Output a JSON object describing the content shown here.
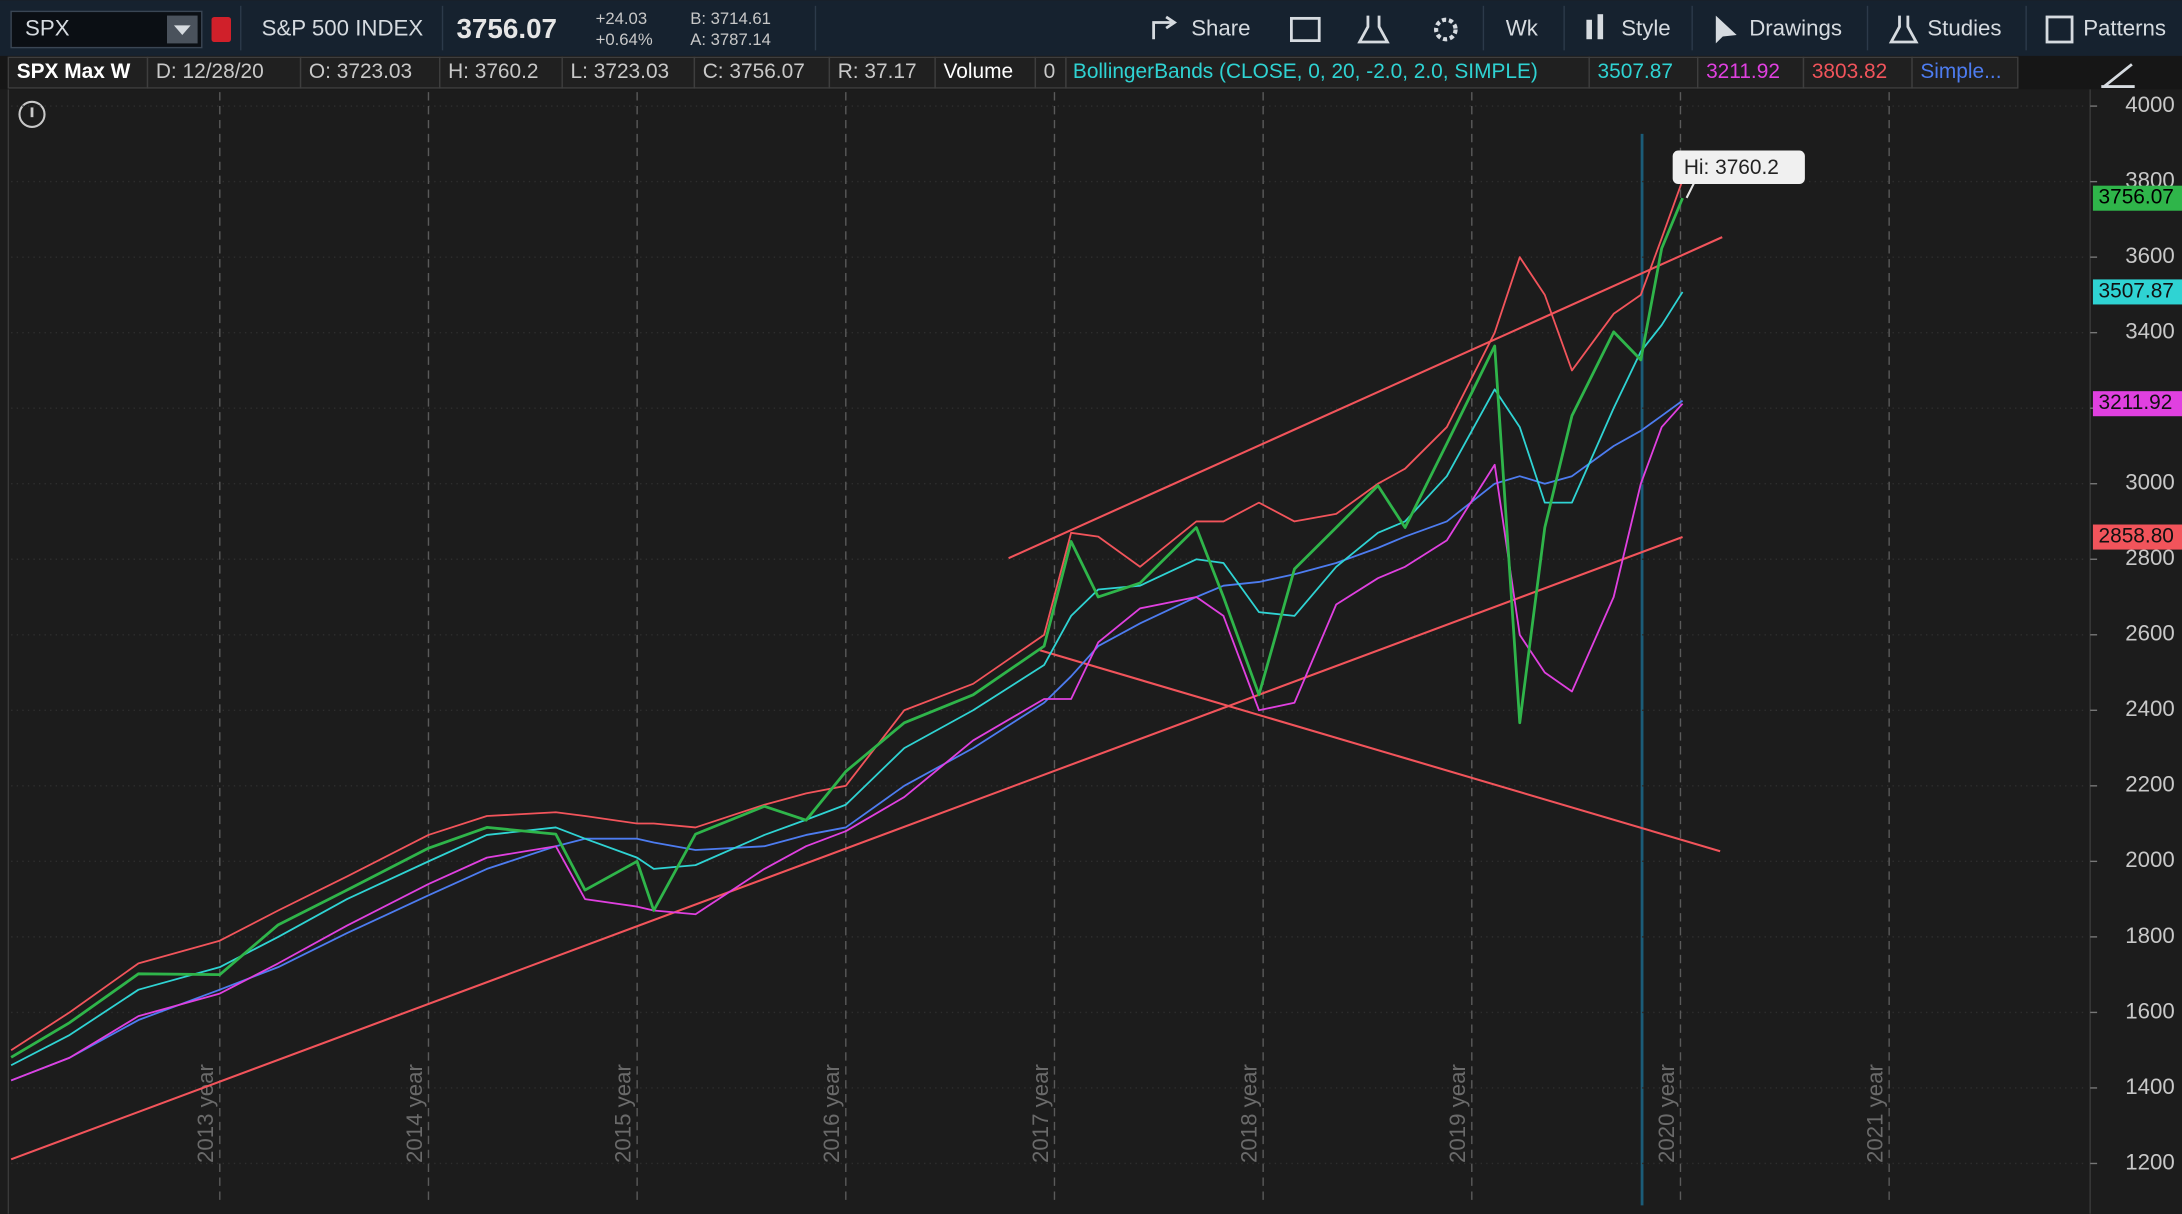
{
  "header": {
    "symbol": "SPX",
    "description": "S&P 500 INDEX",
    "last": "3756.07",
    "change": "+24.03",
    "change_pct": "+0.64%",
    "bid": "B: 3714.61",
    "ask": "A: 3787.14",
    "tools": [
      "Share",
      "Wk",
      "Style",
      "Drawings",
      "Studies",
      "Patterns"
    ]
  },
  "info_bar": {
    "title": "SPX Max W",
    "date": "D: 12/28/20",
    "open": "O: 3723.03",
    "high": "H: 3760.2",
    "low": "L: 3723.03",
    "close": "C: 3756.07",
    "range": "R: 37.17",
    "volume_label": "Volume",
    "volume": "0",
    "study": "BollingerBands (CLOSE, 0, 20, -2.0, 2.0, SIMPLE)",
    "study_mid": "3507.87",
    "study_lower": "3211.92",
    "study_upper": "3803.82",
    "study2": "Simple..."
  },
  "chart_data": {
    "type": "line",
    "x": [
      2012.0,
      2012.28,
      2012.61,
      2013,
      2013.28,
      2013.61,
      2014,
      2014.28,
      2014.61,
      2014.75,
      2015,
      2015.08,
      2015.28,
      2015.61,
      2015.81,
      2016,
      2016.28,
      2016.61,
      2016.95,
      2017.08,
      2017.21,
      2017.41,
      2017.68,
      2017.81,
      2017.98,
      2018.15,
      2018.35,
      2018.55,
      2018.68,
      2018.88,
      2019.11,
      2019.23,
      2019.35,
      2019.48,
      2019.68,
      2019.81,
      2019.91,
      2020.01
    ],
    "series": [
      {
        "name": "SPX",
        "color": "#2fb54a",
        "width": 2,
        "values": [
          1481,
          1573,
          1702,
          1700,
          1832,
          1924,
          2035,
          2090,
          2072,
          1924,
          2000,
          1870,
          2072,
          2146,
          2109,
          2238,
          2367,
          2441,
          2570,
          2847,
          2700,
          2737,
          2884,
          2700,
          2441,
          2774,
          2884,
          2995,
          2884,
          3106,
          3365,
          2367,
          2884,
          3180,
          3402,
          3328,
          3623,
          3756.07
        ]
      },
      {
        "name": "BollingerBands upper",
        "color": "#f2545b",
        "width": 1.3,
        "values": [
          1500,
          1600,
          1730,
          1790,
          1870,
          1960,
          2070,
          2120,
          2130,
          2120,
          2100,
          2100,
          2090,
          2150,
          2180,
          2200,
          2400,
          2470,
          2600,
          2870,
          2860,
          2780,
          2900,
          2900,
          2950,
          2900,
          2920,
          3000,
          3040,
          3150,
          3400,
          3600,
          3500,
          3300,
          3450,
          3500,
          3650,
          3803.82
        ]
      },
      {
        "name": "BollingerBands mid",
        "color": "#2fd3d3",
        "width": 1.3,
        "values": [
          1460,
          1540,
          1660,
          1720,
          1800,
          1900,
          2000,
          2070,
          2090,
          2060,
          2010,
          1980,
          1990,
          2070,
          2110,
          2150,
          2300,
          2400,
          2520,
          2650,
          2720,
          2730,
          2800,
          2790,
          2660,
          2650,
          2780,
          2870,
          2900,
          3020,
          3250,
          3150,
          2950,
          2950,
          3200,
          3350,
          3420,
          3507.87
        ]
      },
      {
        "name": "BollingerBands lower",
        "color": "#e040e0",
        "width": 1.3,
        "values": [
          1420,
          1480,
          1590,
          1650,
          1730,
          1830,
          1940,
          2010,
          2040,
          1900,
          1880,
          1870,
          1860,
          1980,
          2040,
          2080,
          2170,
          2320,
          2430,
          2430,
          2580,
          2670,
          2700,
          2650,
          2400,
          2420,
          2680,
          2750,
          2780,
          2850,
          3050,
          2600,
          2500,
          2450,
          2700,
          3000,
          3150,
          3211.92
        ]
      },
      {
        "name": "Simple...",
        "color": "#4d7cf0",
        "width": 1.3,
        "values": [
          1420,
          1480,
          1580,
          1660,
          1720,
          1810,
          1910,
          1980,
          2040,
          2060,
          2060,
          2050,
          2030,
          2040,
          2070,
          2090,
          2200,
          2300,
          2420,
          2490,
          2570,
          2630,
          2700,
          2730,
          2740,
          2760,
          2790,
          2830,
          2860,
          2900,
          3000,
          3020,
          3000,
          3020,
          3100,
          3140,
          3180,
          3220
        ]
      }
    ],
    "drawings": [
      {
        "color": "#f2545b",
        "x": [
          2016.78,
          2020.2
        ],
        "values": [
          2803,
          3653
        ]
      },
      {
        "color": "#f2545b",
        "x": [
          2016.93,
          2020.19
        ],
        "values": [
          2559,
          2027
        ]
      },
      {
        "color": "#f2545b",
        "x": [
          2012.0,
          2020.01
        ],
        "values": [
          1211,
          2858.8
        ]
      }
    ],
    "price_tags": [
      {
        "value": 3756.07,
        "label": "3756.07",
        "color": "#2fb54a"
      },
      {
        "value": 3507.87,
        "label": "3507.87",
        "color": "#2fd3d3"
      },
      {
        "value": 3211.92,
        "label": "3211.92",
        "color": "#e040e0"
      },
      {
        "value": 2858.8,
        "label": "2858.80",
        "color": "#f2545b"
      }
    ],
    "annotation": "Hi: 3760.2",
    "xlim": [
      2012,
      2021.95
    ],
    "ylim": [
      1089,
      4037
    ],
    "xticks": [
      {
        "value": 2013,
        "label": "2013 year"
      },
      {
        "value": 2014,
        "label": "2014 year"
      },
      {
        "value": 2015,
        "label": "2015 year"
      },
      {
        "value": 2016,
        "label": "2016 year"
      },
      {
        "value": 2017,
        "label": "2017 year"
      },
      {
        "value": 2018,
        "label": "2018 year"
      },
      {
        "value": 2019,
        "label": "2019 year"
      },
      {
        "value": 2020,
        "label": "2020 year"
      },
      {
        "value": 2021,
        "label": "2021 year"
      }
    ],
    "yticks": [
      1200,
      1400,
      1600,
      1800,
      2000,
      2200,
      2400,
      2600,
      2800,
      3000,
      3200,
      3400,
      3600,
      3800,
      4000
    ],
    "grid": true
  }
}
